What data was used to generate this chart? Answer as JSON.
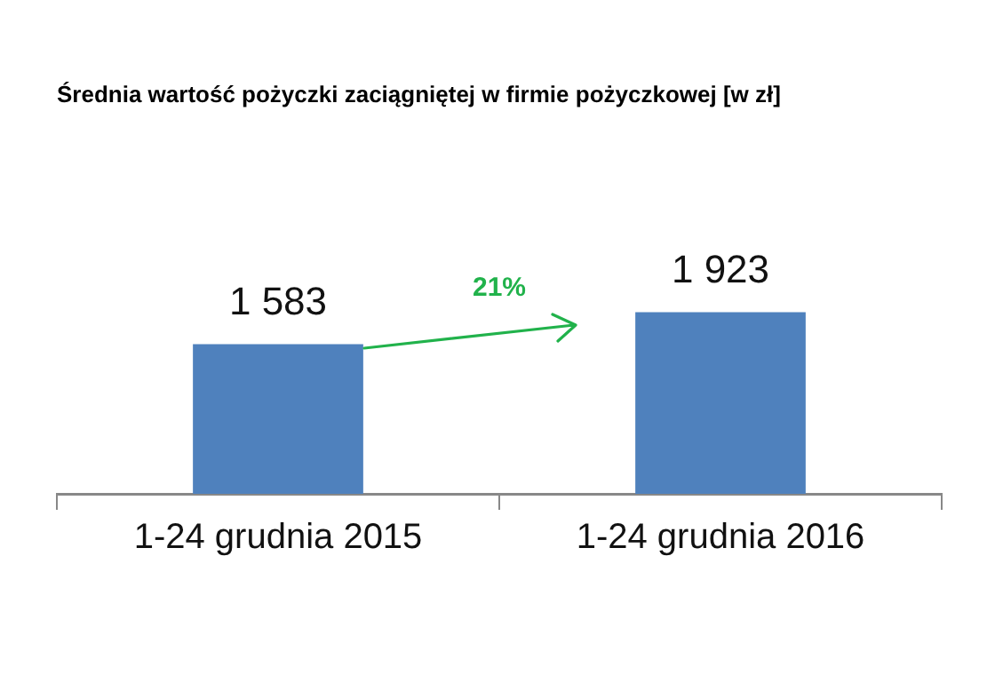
{
  "chart_data": {
    "type": "bar",
    "title": "Średnia wartość pożyczki zaciągniętej w firmie pożyczkowej [w zł]",
    "categories": [
      "1-24 grudnia 2015",
      "1-24 grudnia 2016"
    ],
    "values": [
      1583,
      1923
    ],
    "value_labels": [
      "1 583",
      "1 923"
    ],
    "color": "#4f81bd",
    "annotations": [
      "21%"
    ]
  }
}
